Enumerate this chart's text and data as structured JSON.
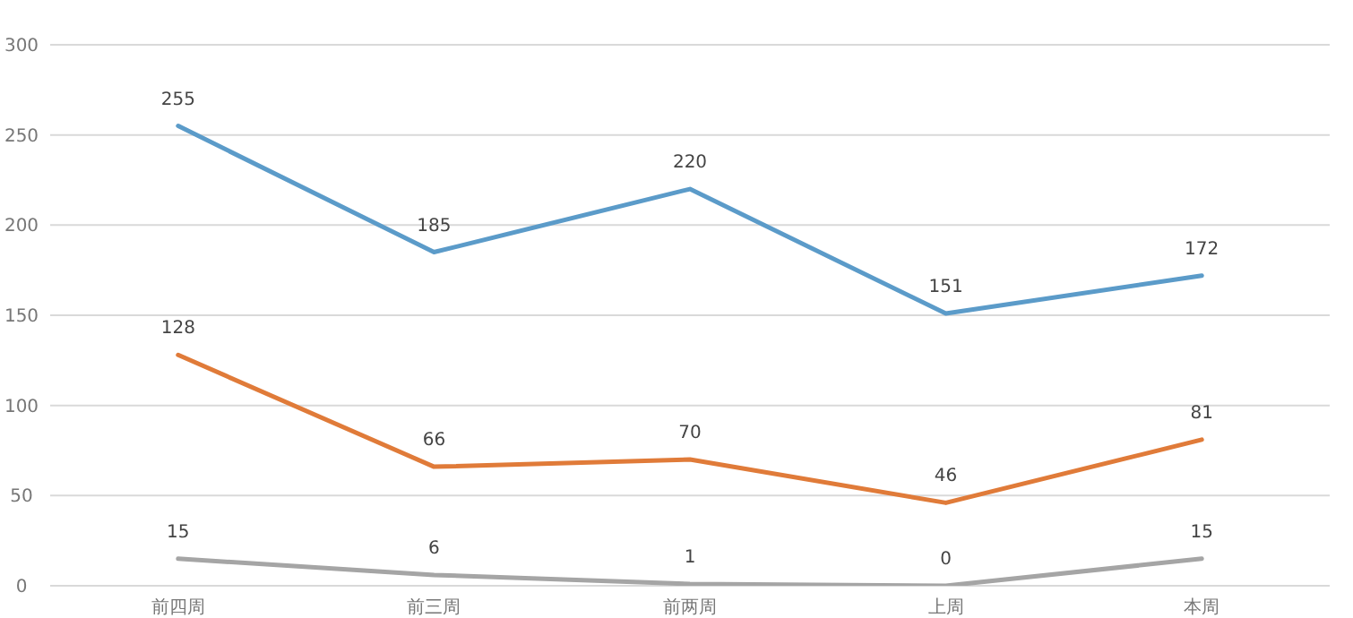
{
  "chart_data": {
    "type": "line",
    "categories": [
      "前四周",
      "前三周",
      "前两周",
      "上周",
      "本周"
    ],
    "series": [
      {
        "color": "#5b9bc9",
        "values": [
          255,
          185,
          220,
          151,
          172
        ]
      },
      {
        "color": "#e07b39",
        "values": [
          128,
          66,
          70,
          46,
          81
        ]
      },
      {
        "color": "#a5a5a5",
        "values": [
          15,
          6,
          1,
          0,
          15
        ]
      }
    ],
    "ylim": [
      0,
      300
    ],
    "yticks": [
      0,
      50,
      100,
      150,
      200,
      250,
      300
    ],
    "grid": "y",
    "data_labels": true,
    "marker": "none",
    "line_style": "solid"
  }
}
